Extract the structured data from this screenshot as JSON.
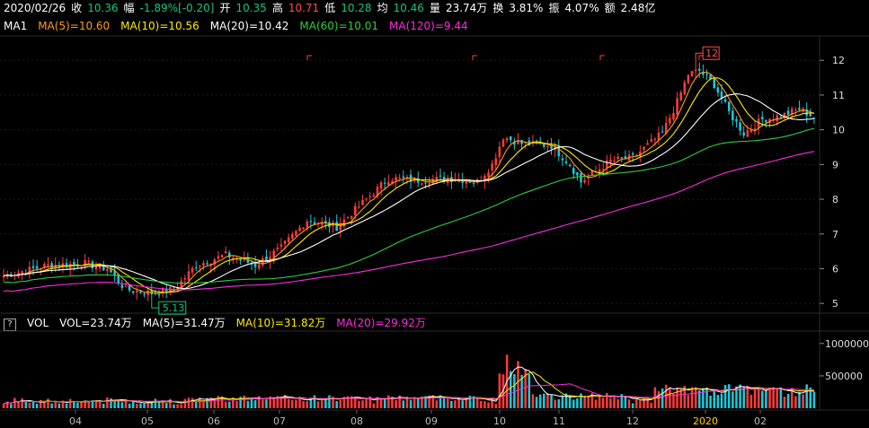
{
  "header": {
    "date": "2020/02/26",
    "close_label": "收",
    "close": "10.36",
    "change_label": "幅",
    "change": "-1.89%[-0.20]",
    "open_label": "开",
    "open": "10.35",
    "high_label": "高",
    "high": "10.71",
    "low_label": "低",
    "low": "10.28",
    "avg_label": "均",
    "avg": "10.46",
    "volume_label": "量",
    "volume": "23.74万",
    "turnover_label": "换",
    "turnover": "3.81%",
    "amplitude_label": "振",
    "amplitude": "4.07%",
    "amount_label": "额",
    "amount": "2.48亿"
  },
  "ma_legend": {
    "name": "MA1",
    "items": [
      {
        "label": "MA(5)=10.60",
        "color": "#ff9a1f"
      },
      {
        "label": "MA(10)=10.56",
        "color": "#ffea00"
      },
      {
        "label": "MA(20)=10.42",
        "color": "#ffffff"
      },
      {
        "label": "MA(60)=10.01",
        "color": "#2ecc40"
      },
      {
        "label": "MA(120)=9.44",
        "color": "#ff2cdf"
      }
    ]
  },
  "vol_legend": {
    "help": "?",
    "name": "VOL",
    "items": [
      {
        "label": "VOL=23.74万",
        "color": "#ffffff"
      },
      {
        "label": "MA(5)=31.47万",
        "color": "#ffffff"
      },
      {
        "label": "MA(10)=31.82万",
        "color": "#ffea00"
      },
      {
        "label": "MA(20)=29.92万",
        "color": "#ff2cdf"
      }
    ]
  },
  "chart_data": {
    "type": "candlestick",
    "price_axis": {
      "ticks": [
        "12",
        "11",
        "10",
        "9",
        "8",
        "7",
        "6",
        "5"
      ],
      "range": [
        4.85,
        12.6
      ]
    },
    "volume_axis": {
      "ticks": [
        "1000000",
        "500000"
      ],
      "range": [
        0,
        1150000
      ]
    },
    "x_axis": {
      "labels": [
        {
          "text": "04",
          "color": "#bbbbbb"
        },
        {
          "text": "05",
          "color": "#bbbbbb"
        },
        {
          "text": "06",
          "color": "#bbbbbb"
        },
        {
          "text": "07",
          "color": "#bbbbbb"
        },
        {
          "text": "08",
          "color": "#bbbbbb"
        },
        {
          "text": "09",
          "color": "#bbbbbb"
        },
        {
          "text": "10",
          "color": "#bbbbbb"
        },
        {
          "text": "11",
          "color": "#bbbbbb"
        },
        {
          "text": "12",
          "color": "#bbbbbb"
        },
        {
          "text": "2020",
          "color": "#ffd400"
        },
        {
          "text": "02",
          "color": "#bbbbbb"
        }
      ]
    },
    "annotations": [
      {
        "text": "5.13",
        "type": "low",
        "color": "#19c37d"
      },
      {
        "text": "12",
        "type": "high",
        "color": "#ff4d4d"
      }
    ],
    "up_color": "#ff3b3b",
    "down_color": "#1ec8d8",
    "price_path": [
      [
        0,
        5.8
      ],
      [
        12,
        6.1
      ],
      [
        22,
        6.15
      ],
      [
        28,
        6.0
      ],
      [
        33,
        5.4
      ],
      [
        40,
        5.3
      ],
      [
        46,
        5.4
      ],
      [
        52,
        6.1
      ],
      [
        60,
        6.4
      ],
      [
        68,
        6.1
      ],
      [
        75,
        6.6
      ],
      [
        82,
        7.4
      ],
      [
        90,
        7.2
      ],
      [
        96,
        7.8
      ],
      [
        104,
        8.6
      ],
      [
        112,
        8.55
      ],
      [
        122,
        8.6
      ],
      [
        128,
        8.5
      ],
      [
        132,
        9.0
      ],
      [
        135,
        9.8
      ],
      [
        140,
        9.6
      ],
      [
        148,
        9.55
      ],
      [
        153,
        9.0
      ],
      [
        156,
        8.5
      ],
      [
        164,
        9.1
      ],
      [
        170,
        9.2
      ],
      [
        178,
        9.9
      ],
      [
        182,
        10.8
      ],
      [
        185,
        11.6
      ],
      [
        188,
        11.7
      ],
      [
        192,
        11.3
      ],
      [
        196,
        10.5
      ],
      [
        200,
        9.9
      ],
      [
        205,
        10.3
      ],
      [
        210,
        10.4
      ],
      [
        215,
        10.6
      ],
      [
        219,
        10.36
      ]
    ]
  }
}
